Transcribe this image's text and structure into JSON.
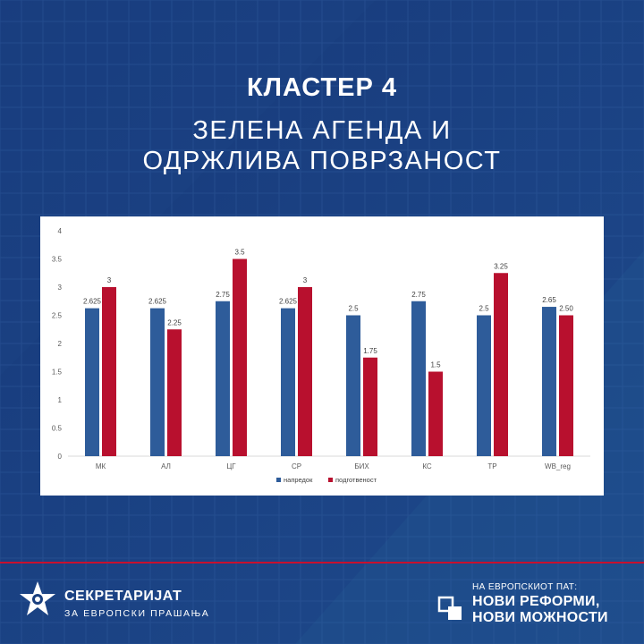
{
  "header": {
    "cluster": "КЛАСТЕР 4",
    "subtitle_line1": "ЗЕЛЕНА АГЕНДА И",
    "subtitle_line2": "ОДРЖЛИВА ПОВРЗАНОСТ"
  },
  "chart_data": {
    "type": "bar",
    "categories": [
      "МК",
      "АЛ",
      "ЦГ",
      "СР",
      "БИХ",
      "КС",
      "ТР",
      "WB_reg"
    ],
    "series": [
      {
        "name": "напредок",
        "color": "#2e5c9a",
        "values": [
          2.625,
          2.625,
          2.75,
          2.625,
          2.5,
          2.75,
          2.5,
          2.65
        ],
        "labels": [
          "2.625",
          "2.625",
          "2.75",
          "2.625",
          "2.5",
          "2.75",
          "2.5",
          "2.65"
        ]
      },
      {
        "name": "подготвеност",
        "color": "#b8102e",
        "values": [
          3,
          2.25,
          3.5,
          3,
          1.75,
          1.5,
          3.25,
          2.5
        ],
        "labels": [
          "3",
          "2.25",
          "3.5",
          "3",
          "1.75",
          "1.5",
          "3.25",
          "2.50"
        ]
      }
    ],
    "y_ticks": [
      "0",
      "0.5",
      "1",
      "1.5",
      "2",
      "2.5",
      "3",
      "3.5",
      "4"
    ],
    "ylim": [
      0,
      4
    ],
    "grid": false,
    "legend_position": "bottom"
  },
  "footer": {
    "org_name": "СЕКРЕТАРИЈАТ",
    "org_subtitle": "ЗА ЕВРОПСКИ ПРАШАЊА",
    "campaign_small": "НА ЕВРОПСКИОТ ПАТ:",
    "campaign_line1": "НОВИ РЕФОРМИ,",
    "campaign_line2": "НОВИ МОЖНОСТИ"
  },
  "colors": {
    "background": "#1a3f7e",
    "accent_red": "#c8102e",
    "bar_blue": "#2e5c9a",
    "bar_red": "#b8102e"
  }
}
